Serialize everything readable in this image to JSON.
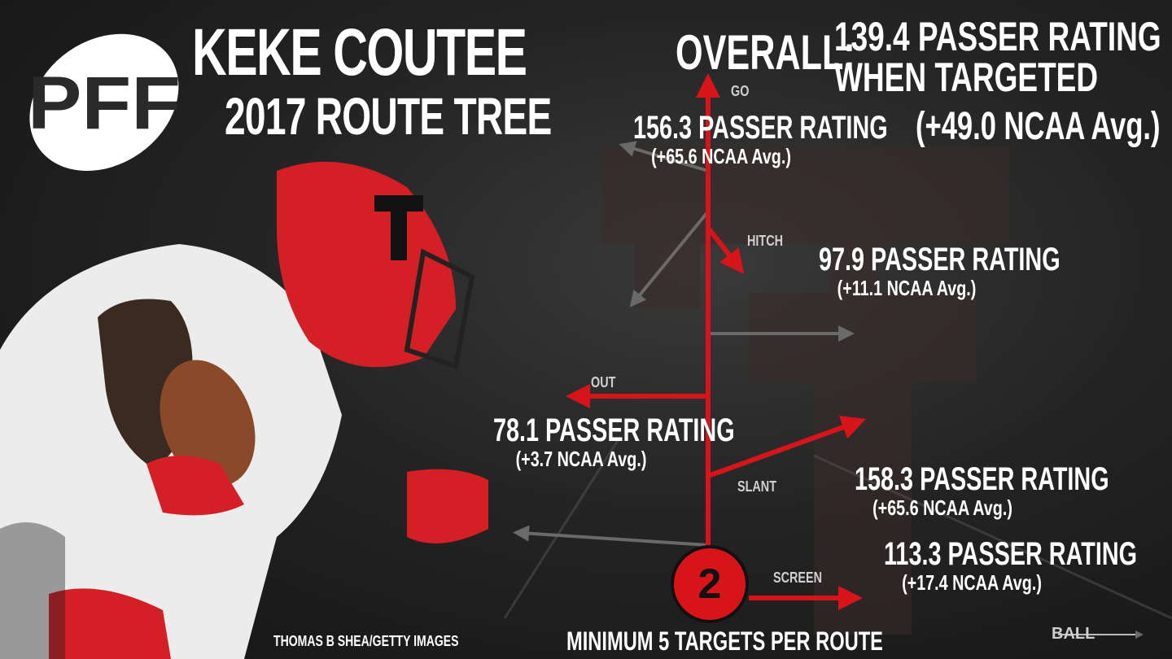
{
  "brand": {
    "logo_text": "PFF"
  },
  "title": {
    "name": "KEKE COUTEE",
    "subtitle": "2017 ROUTE TREE"
  },
  "overall": {
    "label": "OVERALL:",
    "line1": "139.4 PASSER RATING",
    "line2": "WHEN TARGETED",
    "avg": "(+49.0 NCAA Avg.)"
  },
  "routes": {
    "go": {
      "label": "GO",
      "rating": "156.3 PASSER RATING",
      "avg": "(+65.6 NCAA Avg.)"
    },
    "hitch": {
      "label": "HITCH",
      "rating": "97.9 PASSER RATING",
      "avg": "(+11.1 NCAA Avg.)"
    },
    "out": {
      "label": "OUT",
      "rating": "78.1 PASSER RATING",
      "avg": "(+3.7 NCAA Avg.)"
    },
    "slant": {
      "label": "SLANT",
      "rating": "158.3 PASSER RATING",
      "avg": "(+65.6 NCAA Avg.)"
    },
    "screen": {
      "label": "SCREEN",
      "rating": "113.3 PASSER RATING",
      "avg": "(+17.4 NCAA Avg.)"
    }
  },
  "player_badge": "2",
  "footer": {
    "credit": "THOMAS B SHEA/GETTY IMAGES",
    "minimum": "MINIMUM 5 TARGETS PER ROUTE",
    "ball": "BALL"
  },
  "colors": {
    "route_red": "#d8141b",
    "ghost_route": "#6a6a6a",
    "background": "#242424",
    "text": "#ffffff"
  }
}
